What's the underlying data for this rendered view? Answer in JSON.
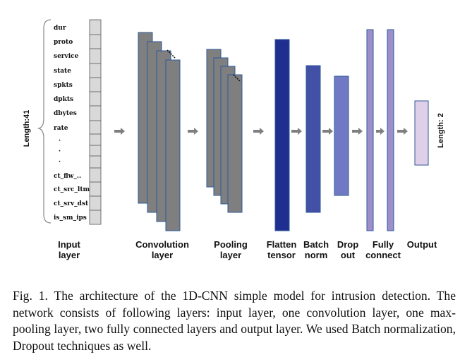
{
  "input": {
    "length_label": "Length:41",
    "features": [
      "dur",
      "proto",
      "service",
      "state",
      "spkts",
      "dpkts",
      "dbytes",
      "rate",
      "·",
      "·",
      "·",
      "ct_flw_..",
      "ct_src_ltm",
      "ct_srv_dst",
      "is_sm_ips"
    ]
  },
  "output": {
    "length_label": "Length: 2"
  },
  "layers": [
    {
      "id": "input",
      "lines": [
        "Input",
        "layer"
      ]
    },
    {
      "id": "conv",
      "lines": [
        "Convolution",
        "layer"
      ]
    },
    {
      "id": "pool",
      "lines": [
        "Pooling",
        "layer"
      ]
    },
    {
      "id": "flatten",
      "lines": [
        "Flatten",
        "tensor"
      ]
    },
    {
      "id": "batch",
      "lines": [
        "Batch",
        "norm"
      ]
    },
    {
      "id": "dropout",
      "lines": [
        "Drop",
        "out"
      ]
    },
    {
      "id": "fc",
      "lines": [
        "Fully",
        "connect"
      ]
    },
    {
      "id": "output",
      "lines": [
        "Output"
      ]
    }
  ],
  "colors": {
    "grid_fill": "#d9d9d9",
    "conv_fill": "#7f7f7f",
    "block_stroke": "#2e5a9a",
    "flatten": "#1f2f8f",
    "batch": "#4250a6",
    "dropout": "#7179c4",
    "fc": "#9e8fca",
    "output": "#e0cfe8",
    "arrow": "#7f7f7f"
  },
  "caption": "Fig. 1. The architecture of the 1D-CNN simple model for intrusion detection. The network consists of following layers: input layer, one convolution layer, one max-pooling layer, two fully connected layers and output layer. We used Batch normalization, Dropout techniques as well."
}
